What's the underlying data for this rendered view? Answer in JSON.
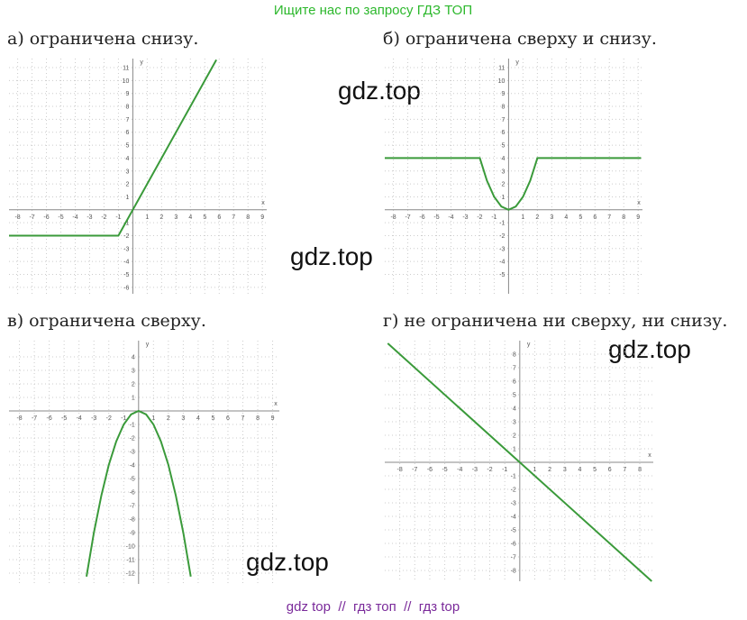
{
  "header": {
    "banner": "Ищите нас по запросу ГДЗ ТОП"
  },
  "panels": [
    {
      "label": "а) ограничена снизу.",
      "x_label": "x",
      "y_label": "y",
      "xlim": [
        -8.6,
        9.3
      ],
      "ylim": [
        -6.5,
        11.7
      ],
      "xticks": [
        -8,
        -7,
        -6,
        -5,
        -4,
        -3,
        -2,
        -1,
        1,
        2,
        3,
        4,
        5,
        6,
        7,
        8,
        9
      ],
      "yticks": [
        -6,
        -5,
        -4,
        -3,
        -2,
        -1,
        1,
        2,
        3,
        4,
        5,
        6,
        7,
        8,
        9,
        10,
        11
      ],
      "curve": {
        "x": [
          -8.6,
          -1,
          5.8
        ],
        "y": [
          -2,
          -2,
          11.6
        ]
      }
    },
    {
      "label": "б) ограничена сверху и снизу.",
      "x_label": "x",
      "y_label": "y",
      "xlim": [
        -8.6,
        9.3
      ],
      "ylim": [
        -6.5,
        11.7
      ],
      "xticks": [
        -8,
        -7,
        -6,
        -5,
        -4,
        -3,
        -2,
        -1,
        1,
        2,
        3,
        4,
        5,
        6,
        7,
        8,
        9
      ],
      "yticks": [
        -5,
        -4,
        -3,
        -2,
        -1,
        1,
        2,
        3,
        4,
        5,
        6,
        7,
        8,
        9,
        10,
        11
      ],
      "curve": {
        "x": [
          -8.6,
          -2,
          -1.5,
          -1,
          -0.5,
          0,
          0.5,
          1,
          1.5,
          2,
          9.2
        ],
        "y": [
          4,
          4,
          2.25,
          1,
          0.25,
          0,
          0.25,
          1,
          2.25,
          4,
          4
        ]
      }
    },
    {
      "label": "в) ограничена сверху.",
      "x_label": "x",
      "y_label": "y",
      "xlim": [
        -8.7,
        9.45
      ],
      "ylim": [
        -12.8,
        5.2
      ],
      "xticks": [
        -8,
        -7,
        -6,
        -5,
        -4,
        -3,
        -2,
        -1,
        1,
        2,
        3,
        4,
        5,
        6,
        7,
        8,
        9
      ],
      "yticks": [
        -12,
        -11,
        -10,
        -9,
        -8,
        -7,
        -6,
        -5,
        -4,
        -3,
        -2,
        -1,
        1,
        2,
        3,
        4
      ],
      "curve": {
        "x": [
          -3.5,
          -3,
          -2.5,
          -2,
          -1.5,
          -1,
          -0.5,
          0,
          0.5,
          1,
          1.5,
          2,
          2.5,
          3,
          3.5
        ],
        "y": [
          -12.25,
          -9,
          -6.25,
          -4,
          -2.25,
          -1,
          -0.25,
          0,
          -0.25,
          -1,
          -2.25,
          -4,
          -6.25,
          -9,
          -12.25
        ]
      }
    },
    {
      "label": "г) не ограничена ни сверху, ни снизу.",
      "x_label": "x",
      "y_label": "y",
      "xlim": [
        -9,
        8.9
      ],
      "ylim": [
        -8.8,
        9
      ],
      "xticks": [
        -8,
        -7,
        -6,
        -5,
        -4,
        -3,
        -2,
        -1,
        1,
        2,
        3,
        4,
        5,
        6,
        7,
        8
      ],
      "yticks": [
        -8,
        -7,
        -6,
        -5,
        -4,
        -3,
        -2,
        -1,
        1,
        2,
        3,
        4,
        5,
        6,
        7,
        8
      ],
      "curve": {
        "x": [
          -8.8,
          8.8
        ],
        "y": [
          8.8,
          -8.8
        ]
      }
    }
  ],
  "watermarks": [
    "gdz.top",
    "gdz.top",
    "gdz.top",
    "gdz.top"
  ],
  "footer": "gdz top  //  гдз топ  //  гдз top"
}
